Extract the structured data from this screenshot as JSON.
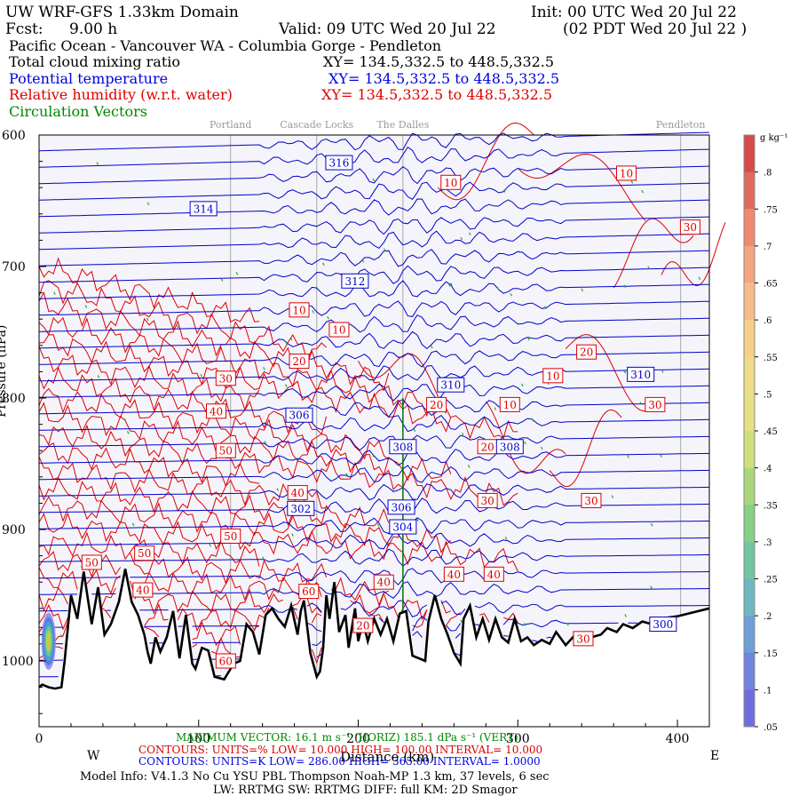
{
  "header": {
    "title_left": "UW WRF-GFS 1.33km Domain",
    "init": "Init: 00 UTC Wed 20 Jul 22",
    "fcst_label": "Fcst:",
    "fcst_value": "9.00 h",
    "valid": "Valid: 09 UTC Wed 20 Jul 22",
    "valid_local": "(02 PDT Wed 20 Jul 22  )",
    "route": "Pacific Ocean - Vancouver WA - Columbia Gorge - Pendleton",
    "fields": [
      {
        "name": "Total cloud mixing ratio",
        "xy": "XY= 134.5,332.5 to 448.5,332.5",
        "color": "#000000"
      },
      {
        "name": "Potential temperature",
        "xy": "XY= 134.5,332.5 to 448.5,332.5",
        "color": "#0000dd"
      },
      {
        "name": "Relative humidity (w.r.t. water)",
        "xy": "XY= 134.5,332.5 to 448.5,332.5",
        "color": "#dd0000"
      },
      {
        "name": "Circulation Vectors",
        "xy": "",
        "color": "#008800"
      }
    ]
  },
  "chart_data": {
    "type": "cross-section",
    "x_range_km": [
      0,
      420
    ],
    "p_range_hpa": [
      1050,
      600
    ],
    "xticks": [
      0,
      100,
      200,
      300,
      400
    ],
    "xtick_labels": [
      "0",
      "100",
      "200",
      "300",
      "400"
    ],
    "pticks": [
      600,
      700,
      800,
      900,
      1000
    ],
    "ptick_labels": [
      "600",
      "700",
      "800",
      "900",
      "1000"
    ],
    "yaxis_label": "Pressure (hPa)",
    "xaxis_label": "Distance (km)",
    "x_end_labels": {
      "west": "W",
      "east": "E"
    },
    "locations": [
      {
        "name": "Portland",
        "x_km": 120
      },
      {
        "name": "Cascade Locks",
        "x_km": 174
      },
      {
        "name": "The Dalles",
        "x_km": 228
      },
      {
        "name": "Pendleton",
        "x_km": 402
      }
    ],
    "theta_labels": [
      {
        "text": "316",
        "x_km": 188,
        "p": 621
      },
      {
        "text": "314",
        "x_km": 103,
        "p": 656
      },
      {
        "text": "312",
        "x_km": 198,
        "p": 711
      },
      {
        "text": "310",
        "x_km": 258,
        "p": 790
      },
      {
        "text": "310",
        "x_km": 377,
        "p": 782
      },
      {
        "text": "308",
        "x_km": 228,
        "p": 837
      },
      {
        "text": "308",
        "x_km": 295,
        "p": 837
      },
      {
        "text": "306",
        "x_km": 163,
        "p": 813
      },
      {
        "text": "306",
        "x_km": 227,
        "p": 883
      },
      {
        "text": "304",
        "x_km": 228,
        "p": 898
      },
      {
        "text": "302",
        "x_km": 164,
        "p": 884
      },
      {
        "text": "300",
        "x_km": 391,
        "p": 972
      }
    ],
    "rh_labels": [
      {
        "text": "10",
        "x_km": 258,
        "p": 636
      },
      {
        "text": "10",
        "x_km": 368,
        "p": 629
      },
      {
        "text": "30",
        "x_km": 408,
        "p": 670
      },
      {
        "text": "10",
        "x_km": 163,
        "p": 733
      },
      {
        "text": "10",
        "x_km": 188,
        "p": 748
      },
      {
        "text": "20",
        "x_km": 163,
        "p": 772
      },
      {
        "text": "20",
        "x_km": 343,
        "p": 765
      },
      {
        "text": "10",
        "x_km": 322,
        "p": 783
      },
      {
        "text": "30",
        "x_km": 117,
        "p": 785
      },
      {
        "text": "30",
        "x_km": 386,
        "p": 805
      },
      {
        "text": "40",
        "x_km": 111,
        "p": 810
      },
      {
        "text": "20",
        "x_km": 249,
        "p": 805
      },
      {
        "text": "10",
        "x_km": 295,
        "p": 805
      },
      {
        "text": "20",
        "x_km": 281,
        "p": 837
      },
      {
        "text": "50",
        "x_km": 117,
        "p": 840
      },
      {
        "text": "40",
        "x_km": 162,
        "p": 872
      },
      {
        "text": "30",
        "x_km": 281,
        "p": 878
      },
      {
        "text": "30",
        "x_km": 346,
        "p": 878
      },
      {
        "text": "50",
        "x_km": 120,
        "p": 905
      },
      {
        "text": "50",
        "x_km": 33,
        "p": 925
      },
      {
        "text": "50",
        "x_km": 66,
        "p": 918
      },
      {
        "text": "40",
        "x_km": 260,
        "p": 934
      },
      {
        "text": "40",
        "x_km": 285,
        "p": 934
      },
      {
        "text": "40",
        "x_km": 65,
        "p": 946
      },
      {
        "text": "60",
        "x_km": 169,
        "p": 947
      },
      {
        "text": "40",
        "x_km": 216,
        "p": 940
      },
      {
        "text": "30",
        "x_km": 341,
        "p": 983
      },
      {
        "text": "20",
        "x_km": 203,
        "p": 973
      },
      {
        "text": "60",
        "x_km": 117,
        "p": 1000
      }
    ],
    "terrain": [
      [
        0,
        1020
      ],
      [
        2,
        1018
      ],
      [
        6,
        1020
      ],
      [
        10,
        1021
      ],
      [
        14,
        1020
      ],
      [
        16,
        1000
      ],
      [
        20,
        950
      ],
      [
        24,
        968
      ],
      [
        28,
        932
      ],
      [
        33,
        972
      ],
      [
        37,
        944
      ],
      [
        41,
        980
      ],
      [
        45,
        972
      ],
      [
        50,
        955
      ],
      [
        54,
        930
      ],
      [
        58,
        955
      ],
      [
        62,
        965
      ],
      [
        66,
        980
      ],
      [
        68,
        993
      ],
      [
        70,
        1002
      ],
      [
        73,
        982
      ],
      [
        76,
        993
      ],
      [
        80,
        982
      ],
      [
        84,
        962
      ],
      [
        88,
        998
      ],
      [
        92,
        965
      ],
      [
        96,
        1002
      ],
      [
        98,
        1006
      ],
      [
        102,
        990
      ],
      [
        106,
        992
      ],
      [
        110,
        1012
      ],
      [
        116,
        1014
      ],
      [
        122,
        1002
      ],
      [
        126,
        1000
      ],
      [
        130,
        972
      ],
      [
        134,
        978
      ],
      [
        138,
        995
      ],
      [
        142,
        965
      ],
      [
        146,
        960
      ],
      [
        150,
        968
      ],
      [
        154,
        974
      ],
      [
        158,
        958
      ],
      [
        162,
        980
      ],
      [
        164,
        962
      ],
      [
        166,
        954
      ],
      [
        170,
        994
      ],
      [
        174,
        1012
      ],
      [
        176,
        1008
      ],
      [
        178,
        990
      ],
      [
        180,
        950
      ],
      [
        182,
        968
      ],
      [
        185,
        940
      ],
      [
        188,
        978
      ],
      [
        192,
        965
      ],
      [
        194,
        990
      ],
      [
        198,
        960
      ],
      [
        200,
        985
      ],
      [
        203,
        970
      ],
      [
        206,
        985
      ],
      [
        210,
        968
      ],
      [
        214,
        980
      ],
      [
        218,
        968
      ],
      [
        222,
        985
      ],
      [
        226,
        964
      ],
      [
        230,
        962
      ],
      [
        234,
        996
      ],
      [
        238,
        998
      ],
      [
        242,
        1000
      ],
      [
        244,
        970
      ],
      [
        248,
        950
      ],
      [
        252,
        968
      ],
      [
        256,
        980
      ],
      [
        260,
        994
      ],
      [
        264,
        1002
      ],
      [
        266,
        968
      ],
      [
        270,
        958
      ],
      [
        274,
        982
      ],
      [
        278,
        968
      ],
      [
        282,
        984
      ],
      [
        286,
        968
      ],
      [
        290,
        982
      ],
      [
        294,
        986
      ],
      [
        298,
        968
      ],
      [
        302,
        985
      ],
      [
        306,
        982
      ],
      [
        310,
        988
      ],
      [
        315,
        984
      ],
      [
        320,
        987
      ],
      [
        324,
        978
      ],
      [
        330,
        988
      ],
      [
        336,
        980
      ],
      [
        340,
        985
      ],
      [
        346,
        982
      ],
      [
        352,
        980
      ],
      [
        356,
        975
      ],
      [
        362,
        978
      ],
      [
        366,
        972
      ],
      [
        372,
        975
      ],
      [
        378,
        970
      ],
      [
        384,
        972
      ],
      [
        388,
        968
      ],
      [
        394,
        967
      ],
      [
        400,
        966
      ],
      [
        410,
        963
      ],
      [
        420,
        960
      ]
    ],
    "colorbar": {
      "title": "g kg⁻¹",
      "min": 0.05,
      "max": 0.85,
      "labels": [
        ".8",
        ".75",
        ".7",
        ".65",
        ".6",
        ".55",
        ".5",
        ".45",
        ".4",
        ".35",
        ".3",
        ".25",
        ".2",
        ".15",
        ".1",
        ".05"
      ]
    },
    "footer": {
      "max_vector": "MAXIMUM VECTOR:  16.1 m s⁻¹ (HORIZ)     185.1 dPa s⁻¹ (VERT)",
      "rh_contours": "CONTOURS:  UNITS=%   LOW=   10.000        HIGH=   100.00        INTERVAL=    10.000",
      "theta_contours": "CONTOURS:  UNITS=K   LOW=   286.00        HIGH=   365.00        INTERVAL=    1.0000",
      "model_info": "Model Info: V4.1.3    No Cu    YSU PBL  Thompson     Noah-MP    1.3 km,   37 levels,    6 sec",
      "model_info2": "LW: RRTMG  SW: RRTMG    DIFF: full    KM: 2D Smagor"
    }
  }
}
